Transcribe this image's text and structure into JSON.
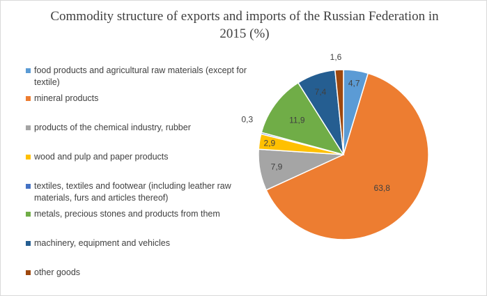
{
  "chart_data": {
    "type": "pie",
    "title": "Commodity structure of exports and imports of the Russian Federation in 2015 (%)",
    "legend_position": "left",
    "slices": [
      {
        "label": "food products and agricultural raw materials (except for textile)",
        "value": 4.7,
        "value_label": "4,7",
        "color": "#5B9BD5"
      },
      {
        "label": "mineral products",
        "value": 63.8,
        "value_label": "63,8",
        "color": "#ED7D31"
      },
      {
        "label": "products of the chemical industry, rubber",
        "value": 7.9,
        "value_label": "7,9",
        "color": "#A5A5A5"
      },
      {
        "label": "wood and pulp and paper products",
        "value": 2.9,
        "value_label": "2,9",
        "color": "#FFC000"
      },
      {
        "label": "textiles, textiles and footwear (including leather raw materials, furs and articles thereof)",
        "value": 0.3,
        "value_label": "0,3",
        "color": "#4472C4"
      },
      {
        "label": "metals, precious stones and products from them",
        "value": 11.9,
        "value_label": "11,9",
        "color": "#70AD47"
      },
      {
        "label": "machinery, equipment and vehicles",
        "value": 7.4,
        "value_label": "7,4",
        "color": "#255E91"
      },
      {
        "label": "other goods",
        "value": 1.6,
        "value_label": "1,6",
        "color": "#9E480E"
      }
    ]
  }
}
